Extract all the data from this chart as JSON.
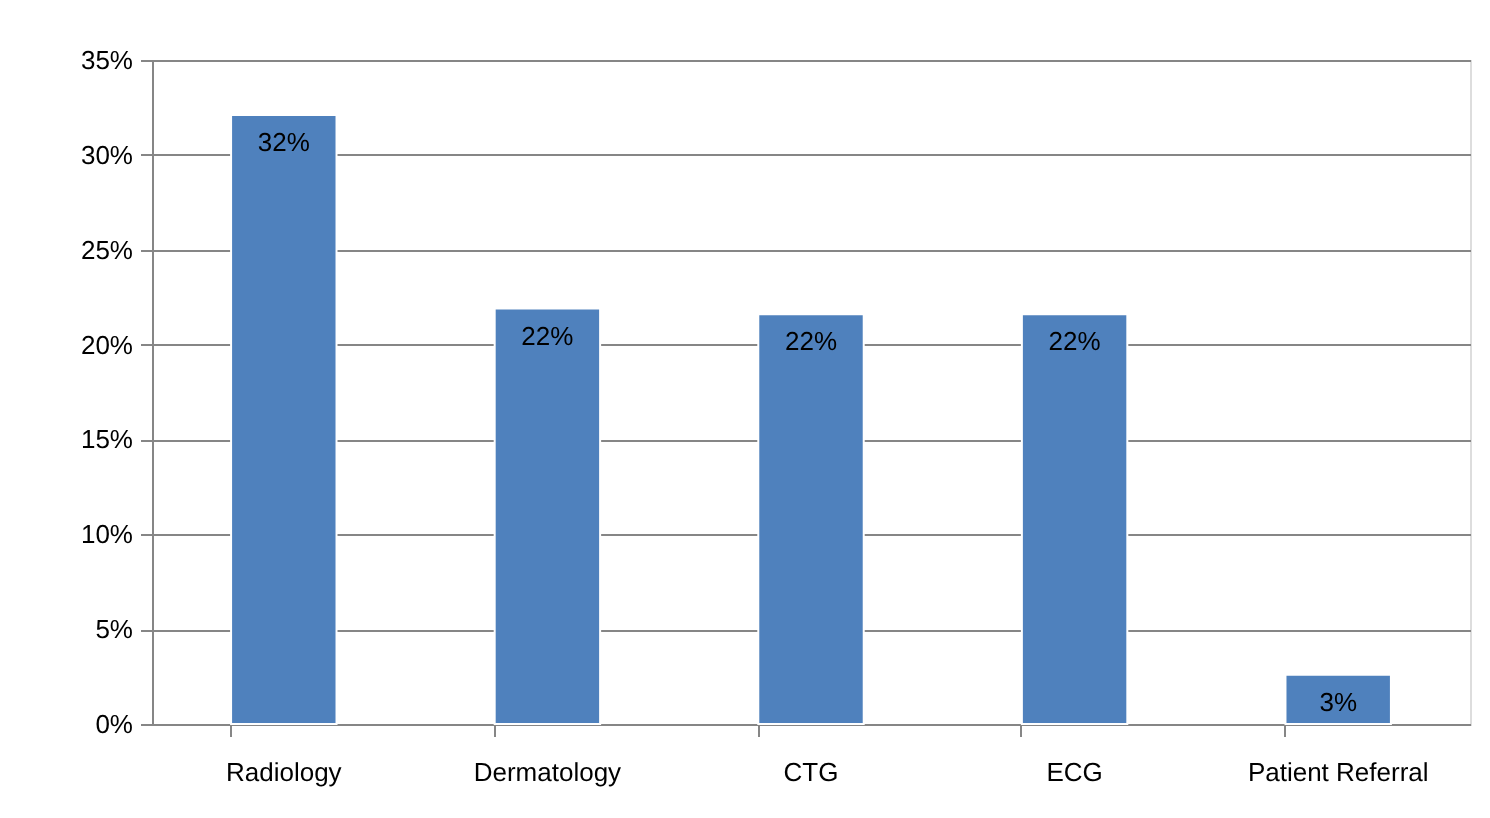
{
  "chart_data": {
    "type": "bar",
    "categories": [
      "Radiology",
      "Dermatology",
      "CTG",
      "ECG",
      "Patient Referral"
    ],
    "values": [
      32.1,
      21.9,
      21.6,
      21.6,
      2.6
    ],
    "value_labels": [
      "32%",
      "22%",
      "22%",
      "22%",
      "3%"
    ],
    "color": "#4f81bd",
    "ylim": [
      0,
      35
    ],
    "yticks": [
      {
        "value": 0,
        "label": "0%"
      },
      {
        "value": 5,
        "label": "5%"
      },
      {
        "value": 10,
        "label": "10%"
      },
      {
        "value": 15,
        "label": "15%"
      },
      {
        "value": 20,
        "label": "20%"
      },
      {
        "value": 25,
        "label": "25%"
      },
      {
        "value": 30,
        "label": "30%"
      },
      {
        "value": 35,
        "label": "35%"
      }
    ],
    "grid": "y"
  }
}
